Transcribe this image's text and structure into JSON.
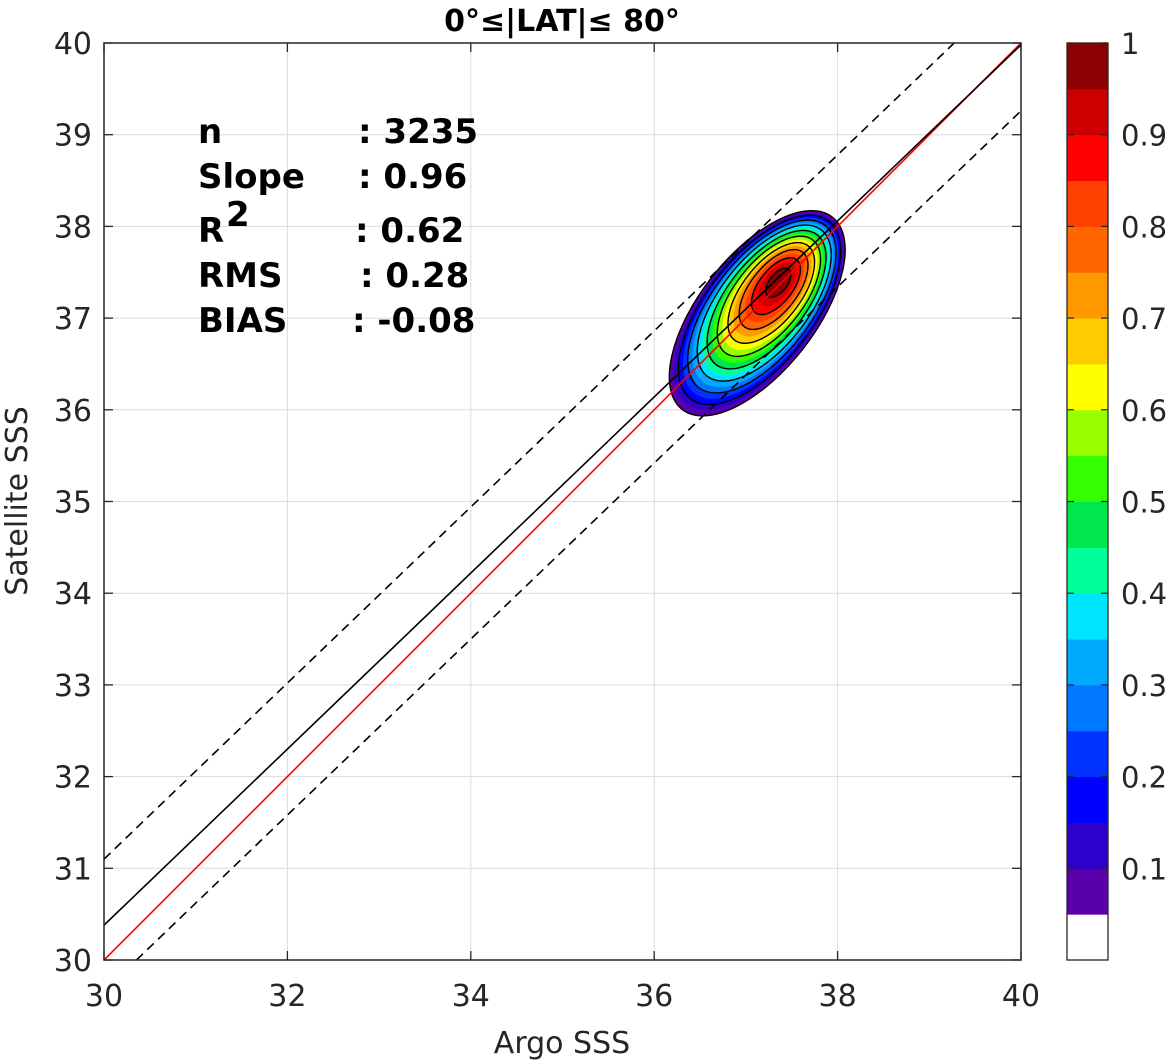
{
  "chart_data": {
    "type": "contour",
    "title": "0°≤|LAT|≤ 80°",
    "xlabel": "Argo SSS",
    "ylabel": "Satellite SSS",
    "xlim": [
      30,
      40
    ],
    "ylim": [
      30,
      40
    ],
    "xticks": [
      "30",
      "32",
      "34",
      "36",
      "38",
      "40"
    ],
    "yticks": [
      "30",
      "31",
      "32",
      "33",
      "34",
      "35",
      "36",
      "37",
      "38",
      "39",
      "40"
    ],
    "grid": true,
    "stats": [
      {
        "label": "n",
        "value": ": 3235"
      },
      {
        "label": "Slope",
        "value": ": 0.96"
      },
      {
        "label": "R",
        "sup": "2",
        "value": ": 0.62"
      },
      {
        "label": "RMS",
        "value": ": 0.28"
      },
      {
        "label": "BIAS",
        "value": ": -0.08"
      }
    ],
    "lines": {
      "one_to_one": {
        "x": [
          30,
          40
        ],
        "y": [
          30,
          40
        ],
        "color": "#ff0000"
      },
      "regression": {
        "x": [
          30,
          40
        ],
        "y": [
          30.38,
          39.98
        ],
        "color": "#000000"
      },
      "regression_bounds": [
        {
          "x": [
            30,
            40
          ],
          "y": [
            31.1,
            40.7
          ],
          "style": "dashed"
        },
        {
          "x": [
            30,
            40
          ],
          "y": [
            29.66,
            39.26
          ],
          "style": "dashed"
        }
      ]
    },
    "density": {
      "center": [
        37.32,
        37.38
      ],
      "rotation_deg": 52,
      "levels": [
        0.05,
        0.1,
        0.15,
        0.2,
        0.25,
        0.3,
        0.35,
        0.4,
        0.45,
        0.5,
        0.55,
        0.6,
        0.65,
        0.7,
        0.75,
        0.8,
        0.85,
        0.9,
        0.95
      ]
    },
    "colorbar": {
      "ticks": [
        "1",
        "0.9",
        "0.8",
        "0.7",
        "0.6",
        "0.5",
        "0.4",
        "0.3",
        "0.2",
        "0.1"
      ],
      "tick_values": [
        1,
        0.9,
        0.8,
        0.7,
        0.6,
        0.5,
        0.4,
        0.3,
        0.2,
        0.1
      ],
      "colors": [
        "#ffffff",
        "#5a00aa",
        "#2d00cc",
        "#0000ff",
        "#0033ff",
        "#0077ff",
        "#00aaff",
        "#00e5ff",
        "#00ff99",
        "#00e64d",
        "#33ff00",
        "#99ff00",
        "#ffff00",
        "#ffcc00",
        "#ff9900",
        "#ff6600",
        "#ff4000",
        "#ff0000",
        "#cc0000",
        "#8b0000"
      ]
    }
  }
}
